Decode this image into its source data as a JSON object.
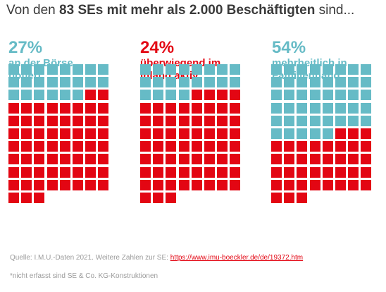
{
  "title": {
    "prefix": "Von den ",
    "bold": "83 SEs mit mehr als 2.000 Beschäftigten",
    "suffix": " sind..."
  },
  "colors": {
    "teal": "#66bbc6",
    "red": "#e30613",
    "text": "#3a3a3a",
    "muted": "#9a9a9a"
  },
  "chart_data": {
    "type": "waffle",
    "total": 83,
    "panels": [
      {
        "percent_label": "27%",
        "line1": "an der Börse",
        "line2": "notiert",
        "accent": "#66bbc6",
        "value_percent": 27,
        "filled_color": "#66bbc6"
      },
      {
        "percent_label": "24%",
        "line1": "überwiegend im",
        "line2": "Inland aktiv",
        "accent": "#e30613",
        "value_percent": 24,
        "filled_color": "#e30613"
      },
      {
        "percent_label": "54%",
        "line1": "mehrheitlich in",
        "line2": "Familienhand",
        "accent": "#66bbc6",
        "value_percent": 54,
        "filled_color": "#66bbc6"
      }
    ],
    "teal_cells": [
      22,
      20,
      45
    ],
    "red_cells": [
      61,
      63,
      38
    ]
  },
  "footer": {
    "source_prefix": "Quelle: I.M.U.-Daten 2021. Weitere Zahlen zur SE: ",
    "source_link": "https://www.imu-boeckler.de/de/19372.htm",
    "note": "*nicht erfasst sind SE & Co. KG-Konstruktionen"
  }
}
